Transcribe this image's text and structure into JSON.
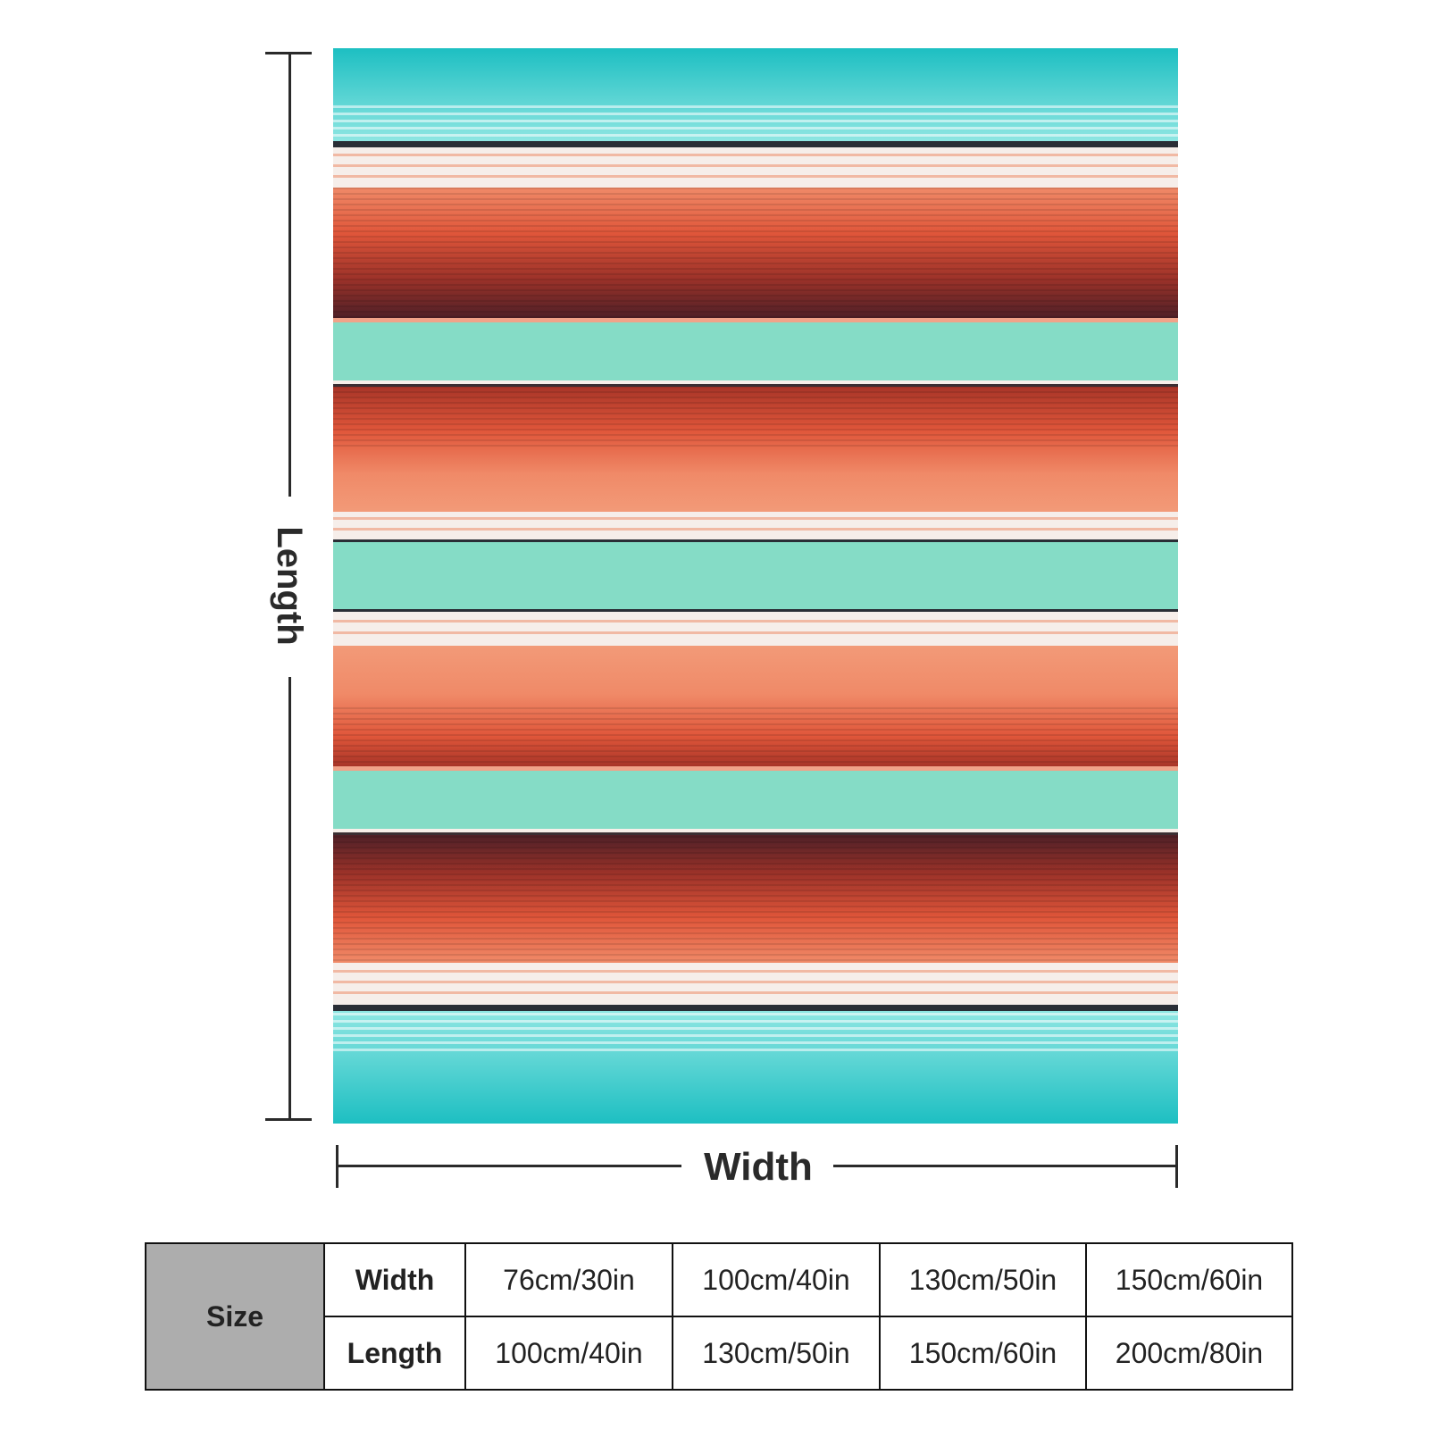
{
  "diagram": {
    "length_label": "Length",
    "width_label": "Width"
  },
  "blanket": {
    "pattern": "serape stripes",
    "colors": {
      "turquoise": "#22c4c6",
      "light_aqua": "#c6f3f0",
      "mint": "#82dcc5",
      "coral": "#f08a68",
      "orange_red": "#e0563a",
      "rust": "#b23a2c",
      "maroon": "#5a2429",
      "cream": "#f6eeea",
      "charcoal": "#2a2e36"
    }
  },
  "size_table": {
    "title": "Size",
    "rows": [
      {
        "label": "Width",
        "values": [
          "76cm/30in",
          "100cm/40in",
          "130cm/50in",
          "150cm/60in"
        ]
      },
      {
        "label": "Length",
        "values": [
          "100cm/40in",
          "130cm/50in",
          "150cm/60in",
          "200cm/80in"
        ]
      }
    ]
  }
}
